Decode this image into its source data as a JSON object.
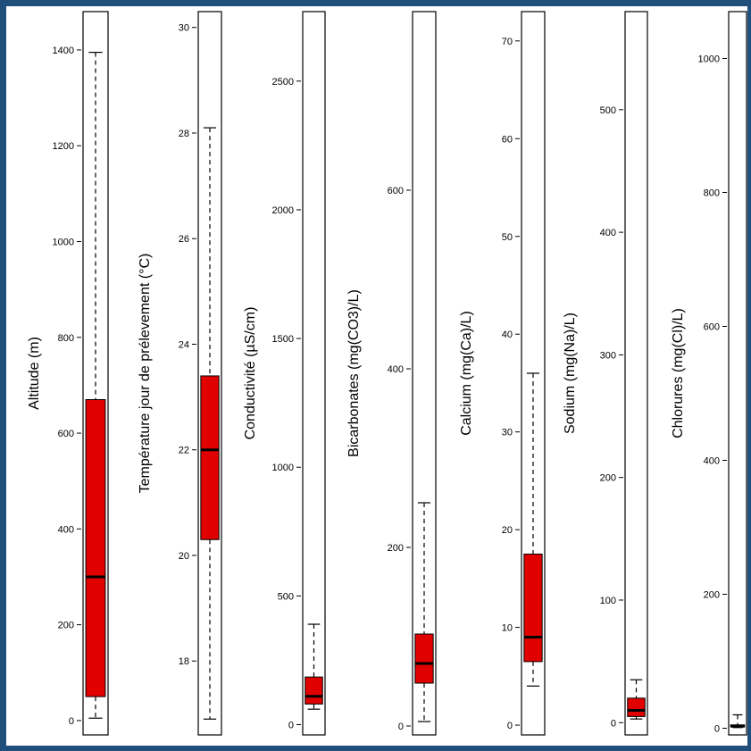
{
  "colors": {
    "box_fill": "#e00000",
    "outline": "#000000",
    "frame_border": "#1f4f7a",
    "background": "#ffffff"
  },
  "chart_data": [
    {
      "type": "boxplot",
      "ylabel": "Altitude (m)",
      "ylim": [
        -30,
        1480
      ],
      "ticks": [
        0,
        200,
        400,
        600,
        800,
        1000,
        1200,
        1400
      ],
      "tick_labels": [
        "0",
        "200",
        "400",
        "600",
        "800",
        "1000",
        "1200",
        "1400"
      ],
      "box": {
        "min": 5,
        "q1": 50,
        "median": 300,
        "q3": 670,
        "max": 1395
      }
    },
    {
      "type": "boxplot",
      "ylabel": "Température jour de prélevement (°C)",
      "ylim": [
        16.6,
        30.3
      ],
      "ticks": [
        18,
        20,
        22,
        24,
        26,
        28,
        30
      ],
      "tick_labels": [
        "18",
        "20",
        "22",
        "24",
        "26",
        "28",
        "30"
      ],
      "box": {
        "min": 16.9,
        "q1": 20.3,
        "median": 22.0,
        "q3": 23.4,
        "max": 28.1
      }
    },
    {
      "type": "boxplot",
      "ylabel": "Conductivité (µS/cm)",
      "ylim": [
        -40,
        2770
      ],
      "ticks": [
        0,
        500,
        1000,
        1500,
        2000,
        2500
      ],
      "tick_labels": [
        "0",
        "500",
        "1000",
        "1500",
        "2000",
        "2500"
      ],
      "box": {
        "min": 60,
        "q1": 80,
        "median": 110,
        "q3": 185,
        "max": 390
      }
    },
    {
      "type": "boxplot",
      "ylabel": "Bicarbonates (mg(CO3)/L)",
      "ylim": [
        -10,
        800
      ],
      "ticks": [
        0,
        200,
        400,
        600
      ],
      "tick_labels": [
        "0",
        "200",
        "400",
        "600"
      ],
      "box": {
        "min": 5,
        "q1": 48,
        "median": 70,
        "q3": 103,
        "max": 250
      }
    },
    {
      "type": "boxplot",
      "ylabel": "Calcium (mg(Ca)/L)",
      "ylim": [
        -1,
        73
      ],
      "ticks": [
        0,
        10,
        20,
        30,
        40,
        50,
        60,
        70
      ],
      "tick_labels": [
        "0",
        "10",
        "20",
        "30",
        "40",
        "50",
        "60",
        "70"
      ],
      "box": {
        "min": 4,
        "q1": 6.5,
        "median": 9,
        "q3": 17.5,
        "max": 36
      }
    },
    {
      "type": "boxplot",
      "ylabel": "Sodium (mg(Na)/L)",
      "ylim": [
        -10,
        580
      ],
      "ticks": [
        0,
        100,
        200,
        300,
        400,
        500
      ],
      "tick_labels": [
        "0",
        "100",
        "200",
        "300",
        "400",
        "500"
      ],
      "box": {
        "min": 3,
        "q1": 5,
        "median": 10,
        "q3": 20,
        "max": 35
      }
    },
    {
      "type": "boxplot",
      "ylabel": "Chlorures (mg(Cl)/L)",
      "ylim": [
        -10,
        1070
      ],
      "ticks": [
        0,
        200,
        400,
        600,
        800,
        1000
      ],
      "tick_labels": [
        "0",
        "200",
        "400",
        "600",
        "800",
        "1000"
      ],
      "box": {
        "min": 1,
        "q1": 2,
        "median": 3,
        "q3": 5,
        "max": 20
      }
    }
  ]
}
